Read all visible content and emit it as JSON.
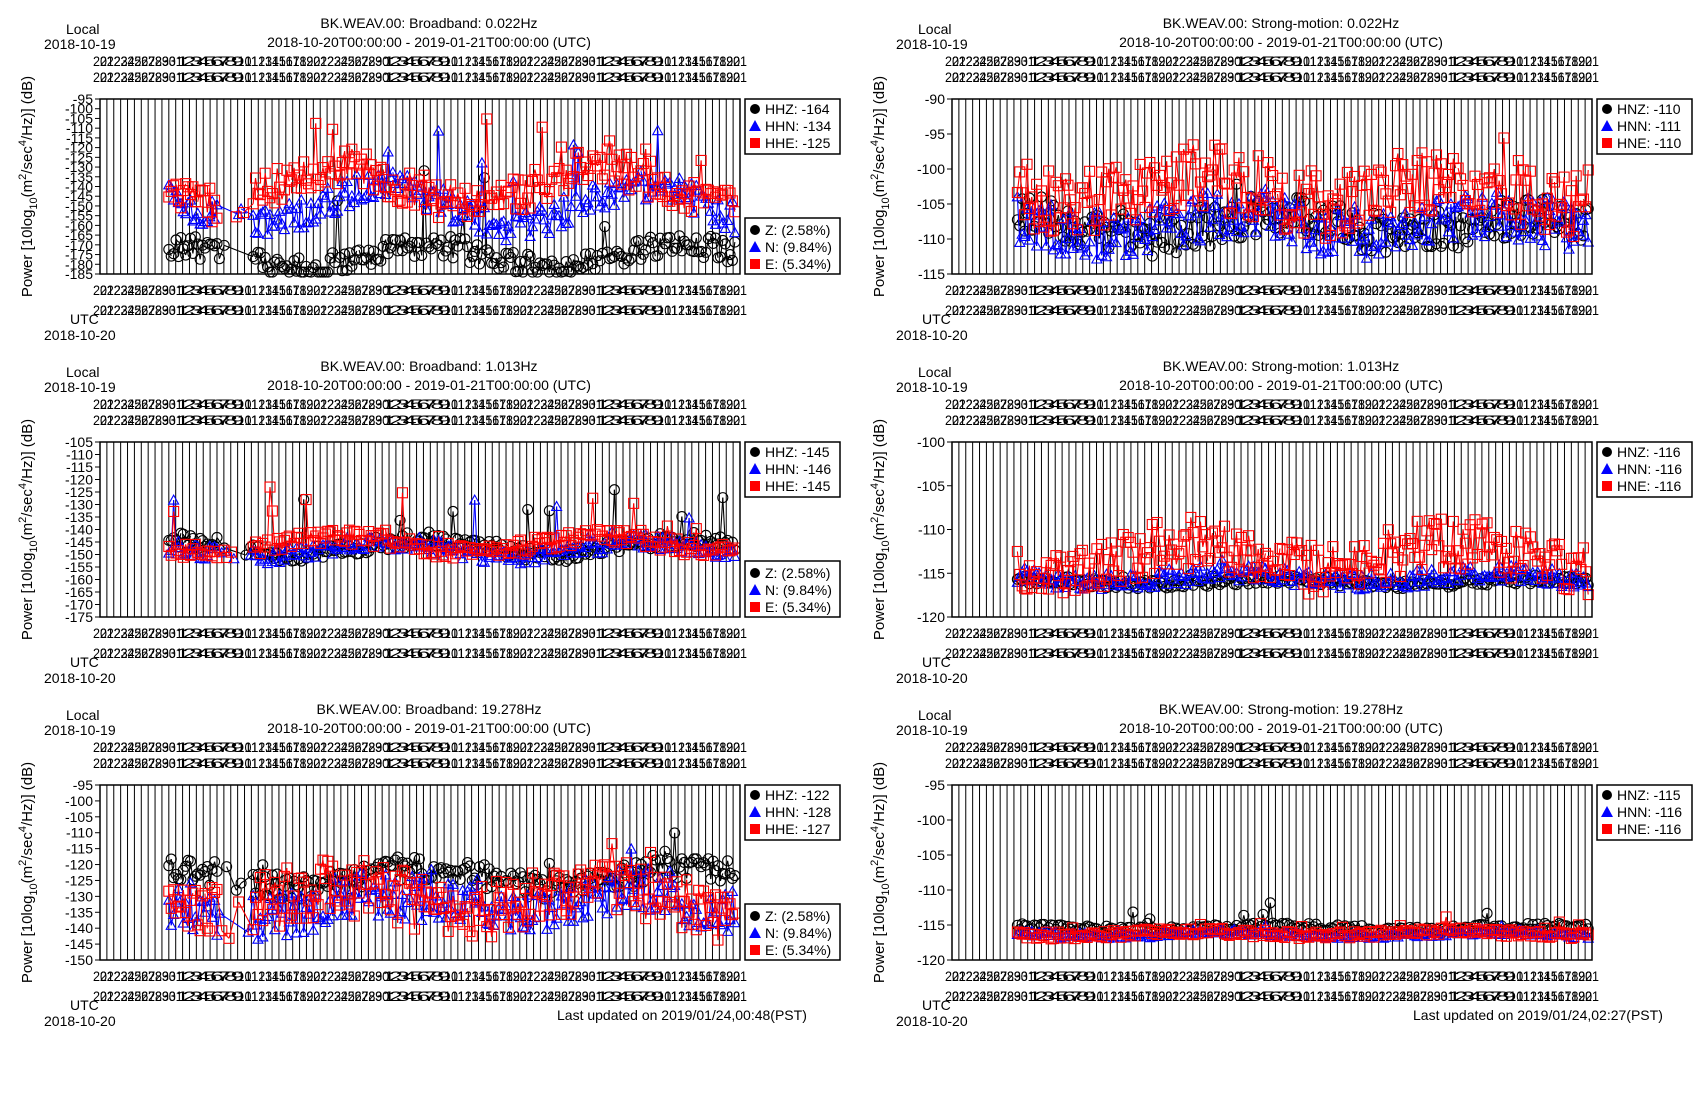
{
  "colors": {
    "z": "#000000",
    "n": "#0000ff",
    "e": "#ff0000",
    "grid": "#000000",
    "frame": "#000000"
  },
  "common": {
    "date_range": "2018-10-20T00:00:00 - 2019-01-21T00:00:00 (UTC)",
    "local_label": "Local",
    "local_date": "2018-10-19",
    "utc_label": "UTC",
    "utc_date": "2018-10-20",
    "ylabel_prefix": "Power [10log",
    "ylabel_sub": "10",
    "ylabel_mid": "(m",
    "ylabel_sup1": "2",
    "ylabel_mid2": "/sec",
    "ylabel_sup2": "4",
    "ylabel_suffix": "/Hz)] (dB)"
  },
  "footers": {
    "left": "Last updated on 2019/01/24,00:48(PST)",
    "right": "Last updated on 2019/01/24,02:27(PST)"
  },
  "chart_data": [
    {
      "id": "bb-0022",
      "type": "scatter",
      "title": "BK.WEAV.00: Broadband: 0.022Hz",
      "ylim": [
        -185,
        -95
      ],
      "ystep": 5,
      "legend": [
        "HHZ: -164",
        "HHN: -134",
        "HHE: -125"
      ],
      "pct_legend": [
        "Z: (2.58%)",
        "N: (9.84%)",
        "E: (5.34%)"
      ],
      "series": [
        {
          "name": "HHZ",
          "comp": "z",
          "marker": "circle",
          "base": -176,
          "amp": 6,
          "noise": 6,
          "spike": 45
        },
        {
          "name": "HHN",
          "comp": "n",
          "marker": "triangle",
          "base": -150,
          "amp": 10,
          "noise": 8,
          "spike": 40
        },
        {
          "name": "HHE",
          "comp": "e",
          "marker": "square",
          "base": -140,
          "amp": 10,
          "noise": 10,
          "spike": 40
        }
      ]
    },
    {
      "id": "sm-0022",
      "type": "scatter",
      "title": "BK.WEAV.00: Strong-motion: 0.022Hz",
      "ylim": [
        -115,
        -90
      ],
      "ystep": 5,
      "legend": [
        "HNZ: -110",
        "HNN: -111",
        "HNE: -110"
      ],
      "pct_legend": [],
      "series": [
        {
          "name": "HNZ",
          "comp": "z",
          "marker": "circle",
          "base": -108,
          "amp": 1.5,
          "noise": 3,
          "spike": 3
        },
        {
          "name": "HNN",
          "comp": "n",
          "marker": "triangle",
          "base": -108,
          "amp": 1.5,
          "noise": 3.5,
          "spike": 3
        },
        {
          "name": "HNE",
          "comp": "e",
          "marker": "square",
          "base": -103,
          "amp": 2,
          "noise": 5,
          "spike": 4
        }
      ]
    },
    {
      "id": "bb-1013",
      "type": "scatter",
      "title": "BK.WEAV.00: Broadband: 1.013Hz",
      "ylim": [
        -175,
        -105
      ],
      "ystep": 5,
      "legend": [
        "HHZ: -145",
        "HHN: -146",
        "HHE: -145"
      ],
      "pct_legend": [
        "Z: (2.58%)",
        "N: (9.84%)",
        "E: (5.34%)"
      ],
      "series": [
        {
          "name": "HHZ",
          "comp": "z",
          "marker": "circle",
          "base": -147,
          "amp": 3,
          "noise": 3,
          "spike": 25
        },
        {
          "name": "HHN",
          "comp": "n",
          "marker": "triangle",
          "base": -148,
          "amp": 3,
          "noise": 3,
          "spike": 28
        },
        {
          "name": "HHE",
          "comp": "e",
          "marker": "square",
          "base": -146,
          "amp": 3,
          "noise": 3,
          "spike": 25
        }
      ]
    },
    {
      "id": "sm-1013",
      "type": "scatter",
      "title": "BK.WEAV.00: Strong-motion: 1.013Hz",
      "ylim": [
        -120,
        -100
      ],
      "ystep": 5,
      "legend": [
        "HNZ: -116",
        "HNN: -116",
        "HNE: -116"
      ],
      "pct_legend": [],
      "series": [
        {
          "name": "HNZ",
          "comp": "z",
          "marker": "circle",
          "base": -116,
          "amp": 0.3,
          "noise": 0.5,
          "spike": 1
        },
        {
          "name": "HNN",
          "comp": "n",
          "marker": "triangle",
          "base": -115.5,
          "amp": 0.5,
          "noise": 1,
          "spike": 1
        },
        {
          "name": "HNE",
          "comp": "e",
          "marker": "square",
          "base": -113,
          "amp": 1.5,
          "noise": 3,
          "spike": 2
        }
      ]
    },
    {
      "id": "bb-19278",
      "type": "scatter",
      "title": "BK.WEAV.00: Broadband: 19.278Hz",
      "ylim": [
        -150,
        -95
      ],
      "ystep": 5,
      "legend": [
        "HHZ: -122",
        "HHN: -128",
        "HHE: -127"
      ],
      "pct_legend": [
        "Z: (2.58%)",
        "N: (9.84%)",
        "E: (5.34%)"
      ],
      "series": [
        {
          "name": "HHZ",
          "comp": "z",
          "marker": "circle",
          "base": -124,
          "amp": 3,
          "noise": 4,
          "spike": 10
        },
        {
          "name": "HHN",
          "comp": "n",
          "marker": "triangle",
          "base": -133,
          "amp": 4,
          "noise": 8,
          "spike": 8
        },
        {
          "name": "HHE",
          "comp": "e",
          "marker": "square",
          "base": -131,
          "amp": 4,
          "noise": 9,
          "spike": 8
        }
      ]
    },
    {
      "id": "sm-19278",
      "type": "scatter",
      "title": "BK.WEAV.00: Strong-motion: 19.278Hz",
      "ylim": [
        -120,
        -95
      ],
      "ystep": 5,
      "legend": [
        "HNZ: -115",
        "HNN: -116",
        "HNE: -116"
      ],
      "pct_legend": [],
      "series": [
        {
          "name": "HNZ",
          "comp": "z",
          "marker": "circle",
          "base": -115.5,
          "amp": 0.3,
          "noise": 0.5,
          "spike": 4
        },
        {
          "name": "HNN",
          "comp": "n",
          "marker": "triangle",
          "base": -116.3,
          "amp": 0.3,
          "noise": 0.4,
          "spike": 1
        },
        {
          "name": "HNE",
          "comp": "e",
          "marker": "square",
          "base": -116.2,
          "amp": 0.3,
          "noise": 0.5,
          "spike": 2
        }
      ]
    }
  ]
}
